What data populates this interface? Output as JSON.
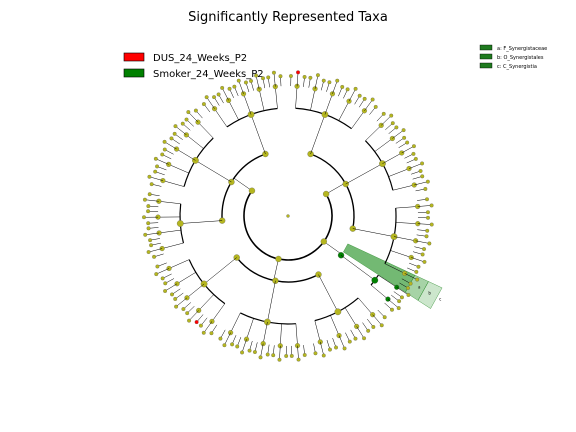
{
  "chart_data": {
    "type": "cladogram",
    "title": "Significantly Represented Taxa",
    "groups": [
      {
        "name": "DUS_24_Weeks_P2",
        "color": "#ff0000"
      },
      {
        "name": "Smoker_24_Weeks_P2",
        "color": "#008000"
      }
    ],
    "node_color": "#b5b61f",
    "highlighted_clades": [
      {
        "letter": "a",
        "label": "a: F_Synergistaceae",
        "group": "Smoker_24_Weeks_P2"
      },
      {
        "letter": "b",
        "label": "b: O_Synergistales",
        "group": "Smoker_24_Weeks_P2"
      },
      {
        "letter": "c",
        "label": "c: C_Synergistia",
        "group": "Smoker_24_Weeks_P2"
      }
    ],
    "clade_marker_letters": [
      "a",
      "b",
      "c"
    ]
  }
}
